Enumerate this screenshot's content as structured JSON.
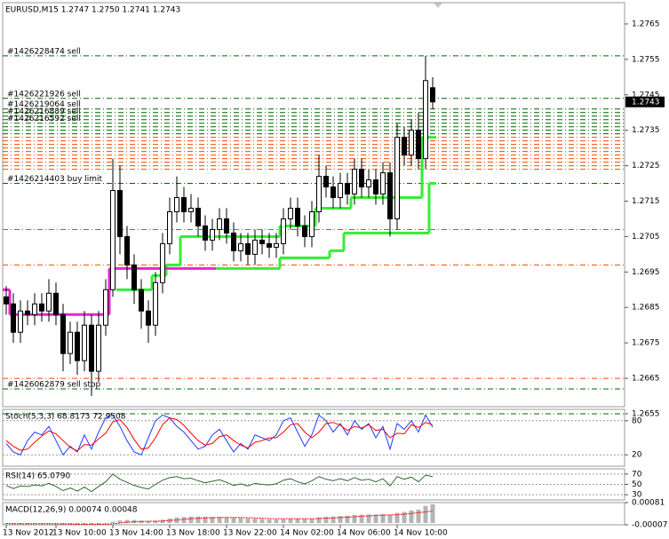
{
  "chart_data": [
    {
      "type": "candlestick",
      "title": "EURUSD,M15  1.2747 1.2750 1.2741 1.2743",
      "categories": [
        "13 Nov 2012",
        null,
        null,
        null,
        null,
        null,
        null,
        "13 Nov 10:00",
        null,
        null,
        null,
        null,
        null,
        null,
        null,
        "13 Nov 14:00",
        null,
        null,
        null,
        null,
        null,
        null,
        null,
        "13 Nov 18:00",
        null,
        null,
        null,
        null,
        null,
        null,
        null,
        "13 Nov 22:00",
        null,
        null,
        null,
        null,
        null,
        null,
        null,
        "14 Nov 02:00",
        null,
        null,
        null,
        null,
        null,
        null,
        null,
        "14 Nov 06:00",
        null,
        null,
        null,
        null,
        null,
        null,
        null,
        "14 Nov 10:00",
        null,
        null,
        null,
        null,
        null
      ],
      "open": [
        1.2688,
        1.2686,
        1.2678,
        1.2684,
        1.2683,
        1.2686,
        1.2684,
        1.2689,
        1.2683,
        1.2672,
        1.2678,
        1.267,
        1.268,
        1.2667,
        1.268,
        1.269,
        1.2718,
        1.2705,
        1.2697,
        1.269,
        1.2684,
        1.268,
        1.2692,
        1.2703,
        1.2712,
        1.2716,
        1.2712,
        1.2713,
        1.2708,
        1.2704,
        1.2707,
        1.271,
        1.2706,
        1.2701,
        1.2703,
        1.27,
        1.2704,
        1.2703,
        1.2702,
        1.2703,
        1.271,
        1.2713,
        1.2708,
        1.2705,
        1.2712,
        1.2722,
        1.2719,
        1.2716,
        1.272,
        1.2717,
        1.2724,
        1.2719,
        1.2721,
        1.2717,
        1.2723,
        1.271,
        1.2733,
        1.2728,
        1.2735,
        1.2727,
        1.2747
      ],
      "high": [
        1.2691,
        1.2689,
        1.2687,
        1.2687,
        1.2689,
        1.2689,
        1.2693,
        1.2692,
        1.2686,
        1.2681,
        1.2681,
        1.2684,
        1.2683,
        1.2684,
        1.2693,
        1.2727,
        1.2725,
        1.2708,
        1.27,
        1.2693,
        1.2687,
        1.2695,
        1.2706,
        1.2716,
        1.2722,
        1.2719,
        1.2717,
        1.2716,
        1.2711,
        1.271,
        1.2713,
        1.2713,
        1.2709,
        1.2706,
        1.2706,
        1.2707,
        1.2707,
        1.2706,
        1.2706,
        1.2713,
        1.2716,
        1.2716,
        1.2711,
        1.2715,
        1.2728,
        1.2725,
        1.2722,
        1.2723,
        1.2723,
        1.2727,
        1.2727,
        1.2724,
        1.2724,
        1.2726,
        1.2726,
        1.2737,
        1.2736,
        1.2738,
        1.274,
        1.2756,
        1.275
      ],
      "low": [
        1.2683,
        1.2675,
        1.2675,
        1.268,
        1.268,
        1.2681,
        1.2681,
        1.268,
        1.2667,
        1.2669,
        1.2666,
        1.2667,
        1.266,
        1.2664,
        1.2677,
        1.2688,
        1.27,
        1.2693,
        1.2686,
        1.2679,
        1.2675,
        1.2677,
        1.2689,
        1.27,
        1.2709,
        1.2709,
        1.2709,
        1.2705,
        1.2701,
        1.2701,
        1.2704,
        1.2703,
        1.2698,
        1.2698,
        1.2697,
        1.2697,
        1.27,
        1.2699,
        1.2699,
        1.27,
        1.2707,
        1.2705,
        1.2702,
        1.2702,
        1.2709,
        1.2716,
        1.2713,
        1.2713,
        1.2714,
        1.2714,
        1.2716,
        1.2716,
        1.2714,
        1.2714,
        1.2705,
        1.2707,
        1.2725,
        1.2725,
        1.2724,
        1.2724,
        1.2741
      ],
      "close": [
        1.2686,
        1.2678,
        1.2684,
        1.2683,
        1.2686,
        1.2684,
        1.2689,
        1.2683,
        1.2672,
        1.2678,
        1.267,
        1.268,
        1.2667,
        1.268,
        1.269,
        1.2718,
        1.2705,
        1.2697,
        1.269,
        1.2684,
        1.268,
        1.2692,
        1.2703,
        1.2712,
        1.2716,
        1.2712,
        1.2713,
        1.2708,
        1.2704,
        1.2707,
        1.271,
        1.2706,
        1.2701,
        1.2703,
        1.27,
        1.2704,
        1.2703,
        1.2702,
        1.2703,
        1.271,
        1.2713,
        1.2708,
        1.2705,
        1.2712,
        1.2722,
        1.2719,
        1.2716,
        1.272,
        1.2717,
        1.2724,
        1.2719,
        1.2721,
        1.2717,
        1.2723,
        1.271,
        1.2733,
        1.2728,
        1.2735,
        1.2727,
        1.2749,
        1.2743
      ],
      "last_price": 1.2743,
      "steps": [
        {
          "color": "#33ee33",
          "values": [
            null,
            null,
            null,
            null,
            null,
            null,
            null,
            null,
            null,
            null,
            null,
            null,
            null,
            null,
            null,
            null,
            1.269,
            1.269,
            1.269,
            1.269,
            1.269,
            1.2694,
            1.2694,
            1.2697,
            1.2697,
            1.2705,
            1.2705,
            1.2705,
            1.2705,
            1.2705,
            1.2705,
            1.2705,
            1.2705,
            1.2705,
            1.2705,
            1.2705,
            1.2705,
            1.2705,
            1.2705,
            1.2708,
            1.2708,
            1.2708,
            1.2708,
            1.2708,
            1.2713,
            1.2713,
            1.2713,
            1.2713,
            1.2713,
            1.2716,
            1.2716,
            1.2716,
            1.2716,
            1.2716,
            1.2716,
            1.2716,
            1.2716,
            1.2716,
            1.2716,
            1.2733,
            1.2733
          ]
        },
        {
          "color": "#33ee33",
          "values": [
            null,
            null,
            null,
            null,
            null,
            null,
            null,
            null,
            null,
            null,
            null,
            null,
            null,
            null,
            null,
            null,
            null,
            null,
            null,
            null,
            null,
            null,
            null,
            null,
            null,
            null,
            null,
            null,
            null,
            null,
            1.2696,
            1.2696,
            1.2696,
            1.2696,
            1.2696,
            1.2696,
            1.2696,
            1.2696,
            1.2696,
            1.2699,
            1.2699,
            1.2699,
            1.2699,
            1.2699,
            1.2699,
            1.2699,
            1.2701,
            1.2701,
            1.2706,
            1.2706,
            1.2706,
            1.2706,
            1.2706,
            1.2706,
            1.2706,
            1.2706,
            1.2706,
            1.2706,
            1.2706,
            1.2706,
            1.272
          ]
        },
        {
          "color": "#ee22cc",
          "values": [
            1.269,
            1.2683,
            1.2683,
            1.2683,
            1.2683,
            1.2683,
            1.2683,
            1.2683,
            1.2683,
            1.2683,
            1.2683,
            1.2683,
            1.2683,
            1.2683,
            1.2683,
            1.2696,
            1.2696,
            1.2696,
            1.2696,
            1.2696,
            1.2696,
            1.2696,
            1.2696,
            1.2696,
            1.2696,
            1.2696,
            1.2696,
            1.2696,
            1.2696,
            1.2696,
            null,
            null,
            null,
            null,
            null,
            null,
            null,
            null,
            null,
            null,
            null,
            null,
            null,
            null,
            null,
            null,
            null,
            null,
            null,
            null,
            null,
            null,
            null,
            null,
            null,
            null,
            null,
            null,
            null,
            null,
            null
          ]
        }
      ],
      "orders": [
        {
          "label": "#1426228474 sell",
          "price": 1.2756,
          "color": "#006400"
        },
        {
          "label": "#1426221926 sell",
          "price": 1.2744,
          "color": "#006400"
        },
        {
          "label": "#1426219064 sell",
          "price": 1.2741,
          "color": "#006400"
        },
        {
          "label": "#1426216889 sell",
          "price": 1.2739,
          "color": "#006400"
        },
        {
          "label": "#1426216592 sell",
          "price": 1.2737,
          "color": "#006400"
        },
        {
          "label": "#1426214403 buy limit",
          "price": 1.272,
          "color": "#006400"
        },
        {
          "label": "#1426062879 sell stop",
          "price": 1.2662,
          "color": "#006400"
        }
      ],
      "levels": [
        {
          "price": 1.274,
          "color": "#006400"
        },
        {
          "price": 1.2738,
          "color": "#006400"
        },
        {
          "price": 1.2736,
          "color": "#006400"
        },
        {
          "price": 1.2735,
          "color": "#006400"
        },
        {
          "price": 1.2734,
          "color": "#006400"
        },
        {
          "price": 1.2655,
          "color": "#006400"
        },
        {
          "price": 1.2733,
          "color": "#ff4500"
        },
        {
          "price": 1.2732,
          "color": "#ff4500"
        },
        {
          "price": 1.2731,
          "color": "#ff4500"
        },
        {
          "price": 1.273,
          "color": "#ff4500"
        },
        {
          "price": 1.2729,
          "color": "#ff4500"
        },
        {
          "price": 1.2728,
          "color": "#ff4500"
        },
        {
          "price": 1.2727,
          "color": "#ff4500"
        },
        {
          "price": 1.2726,
          "color": "#ff4500"
        },
        {
          "price": 1.2725,
          "color": "#ff4500"
        },
        {
          "price": 1.2724,
          "color": "#ff4500"
        },
        {
          "price": 1.2707,
          "color": "#ff4500"
        },
        {
          "price": 1.2697,
          "color": "#ff4500"
        },
        {
          "price": 1.2665,
          "color": "#ff4500"
        }
      ],
      "ylim": [
        1.2657,
        1.2771
      ],
      "yticks": [
        1.2765,
        1.2755,
        1.2745,
        1.2735,
        1.2725,
        1.2715,
        1.2705,
        1.2695,
        1.2685,
        1.2675,
        1.2665,
        1.2655
      ],
      "grid": false
    },
    {
      "type": "line",
      "title": "Stoch(5,3,3) 68.8173 72.9508",
      "series": [
        {
          "color": "#1e3cff",
          "values": [
            40,
            25,
            20,
            45,
            60,
            55,
            70,
            45,
            20,
            35,
            25,
            55,
            30,
            60,
            85,
            90,
            70,
            45,
            25,
            20,
            50,
            80,
            90,
            85,
            70,
            60,
            45,
            30,
            35,
            55,
            65,
            45,
            25,
            40,
            30,
            55,
            50,
            45,
            55,
            80,
            85,
            60,
            35,
            55,
            90,
            80,
            60,
            75,
            55,
            80,
            65,
            75,
            50,
            70,
            30,
            75,
            65,
            80,
            60,
            90,
            68.8173
          ]
        },
        {
          "color": "#ff0000",
          "values": [
            45,
            35,
            28,
            30,
            42,
            53,
            62,
            57,
            45,
            33,
            27,
            38,
            37,
            48,
            58,
            78,
            82,
            68,
            47,
            30,
            32,
            50,
            73,
            85,
            82,
            72,
            58,
            45,
            37,
            40,
            52,
            55,
            45,
            37,
            32,
            42,
            45,
            50,
            50,
            60,
            73,
            75,
            60,
            50,
            60,
            75,
            77,
            72,
            63,
            70,
            67,
            73,
            63,
            65,
            50,
            58,
            57,
            73,
            68,
            77,
            72.9508
          ]
        }
      ],
      "ylim": [
        0,
        100
      ],
      "yticks": [
        80,
        20
      ],
      "grid": true
    },
    {
      "type": "line",
      "title": "RSI(14) 65.0790",
      "series": [
        {
          "color": "#2e6b2e",
          "values": [
            48,
            42,
            47,
            46,
            49,
            47,
            52,
            46,
            38,
            43,
            37,
            45,
            36,
            46,
            55,
            70,
            60,
            54,
            48,
            44,
            41,
            50,
            58,
            63,
            65,
            61,
            62,
            57,
            53,
            56,
            59,
            54,
            48,
            51,
            47,
            52,
            50,
            49,
            51,
            58,
            61,
            55,
            51,
            57,
            65,
            60,
            57,
            61,
            57,
            63,
            58,
            60,
            55,
            61,
            47,
            65,
            60,
            64,
            55,
            68,
            65.079
          ]
        }
      ],
      "ylim": [
        20,
        80
      ],
      "yticks": [
        70,
        50,
        30
      ],
      "grid": true
    },
    {
      "type": "macd",
      "title": "MACD(12,26,9) 0.00074 0.00048",
      "values": [
        -3e-05,
        -4e-05,
        -4e-05,
        -4e-05,
        -3e-05,
        -3e-05,
        -2e-05,
        -3e-05,
        -5e-05,
        -5e-05,
        -6e-05,
        -5e-05,
        -6e-05,
        -5e-05,
        -3e-05,
        5e-05,
        0.0001,
        0.00012,
        0.00012,
        0.0001,
        8e-05,
        9e-05,
        0.00013,
        0.00018,
        0.00022,
        0.00024,
        0.00026,
        0.00026,
        0.00025,
        0.00024,
        0.00024,
        0.00023,
        0.00021,
        0.0002,
        0.00018,
        0.00017,
        0.00016,
        0.00015,
        0.00014,
        0.00015,
        0.00017,
        0.00017,
        0.00016,
        0.00017,
        0.00022,
        0.00025,
        0.00026,
        0.00028,
        0.00029,
        0.00032,
        0.00033,
        0.00034,
        0.00034,
        0.00036,
        0.00033,
        0.0004,
        0.00044,
        0.0005,
        0.00053,
        0.00068,
        0.00074
      ],
      "color": "#b4b4b4",
      "series": [
        {
          "color": "#ff0000",
          "values": [
            -2e-05,
            -3e-05,
            -3e-05,
            -3e-05,
            -3e-05,
            -3e-05,
            -3e-05,
            -3e-05,
            -4e-05,
            -4e-05,
            -5e-05,
            -5e-05,
            -5e-05,
            -5e-05,
            -5e-05,
            -3e-05,
            0,
            3e-05,
            5e-05,
            6e-05,
            7e-05,
            7e-05,
            8e-05,
            0.0001,
            0.00012,
            0.00015,
            0.00017,
            0.00019,
            0.0002,
            0.00021,
            0.00022,
            0.00022,
            0.00022,
            0.00022,
            0.00021,
            0.0002,
            0.00019,
            0.00018,
            0.00017,
            0.00017,
            0.00017,
            0.00017,
            0.00017,
            0.00017,
            0.00018,
            0.00019,
            0.0002,
            0.00022,
            0.00023,
            0.00025,
            0.00027,
            0.00028,
            0.0003,
            0.00031,
            0.00032,
            0.00033,
            0.00035,
            0.00038,
            0.00041,
            0.00044,
            0.00048
          ]
        }
      ],
      "ylim": [
        -7e-05,
        0.00081
      ],
      "yticks": [
        0.00081,
        -7e-05
      ],
      "grid": false
    }
  ]
}
